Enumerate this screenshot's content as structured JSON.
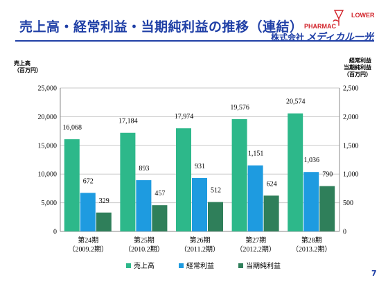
{
  "slide": {
    "title": "売上高・経常利益・当期純利益の推移（連結）",
    "company_prefix": "株式会社",
    "company_name": "メディカル一光",
    "logo_text_left": "PHARMAC",
    "logo_text_right": "LOWER",
    "page_number": "7"
  },
  "colors": {
    "title": "#1f3fa6",
    "sales": "#2db88a",
    "ordinary_profit": "#1e9be0",
    "net_income": "#2f7f5a",
    "logo_red": "#d2232a"
  },
  "chart_data": {
    "type": "bar",
    "ylabel_left": [
      "売上高",
      "（百万円）"
    ],
    "ylabel_right": [
      "経常利益",
      "当期純利益",
      "（百万円）"
    ],
    "ylim_left": [
      0,
      25000
    ],
    "ylim_right": [
      0,
      2500
    ],
    "yticks_left": [
      "0",
      "5,000",
      "10,000",
      "15,000",
      "20,000",
      "25,000"
    ],
    "yticks_right": [
      "0",
      "500",
      "1,000",
      "1,500",
      "2,000",
      "2,500"
    ],
    "categories": [
      [
        "第24期",
        "（2009.2期）"
      ],
      [
        "第25期",
        "（2010.2期）"
      ],
      [
        "第26期",
        "（2011.2期）"
      ],
      [
        "第27期",
        "（2012.2期）"
      ],
      [
        "第28期",
        "（2013.2期）"
      ]
    ],
    "series": [
      {
        "name": "売上高",
        "axis": "left",
        "values": [
          16068,
          17184,
          17974,
          19576,
          20574
        ],
        "labels": [
          "16,068",
          "17,184",
          "17,974",
          "19,576",
          "20,574"
        ]
      },
      {
        "name": "経常利益",
        "axis": "right",
        "values": [
          672,
          893,
          931,
          1151,
          1036
        ],
        "labels": [
          "672",
          "893",
          "931",
          "1,151",
          "1,036"
        ]
      },
      {
        "name": "当期純利益",
        "axis": "right",
        "values": [
          329,
          457,
          512,
          624,
          790
        ],
        "labels": [
          "329",
          "457",
          "512",
          "624",
          "790"
        ]
      }
    ],
    "legend_position": "bottom"
  }
}
